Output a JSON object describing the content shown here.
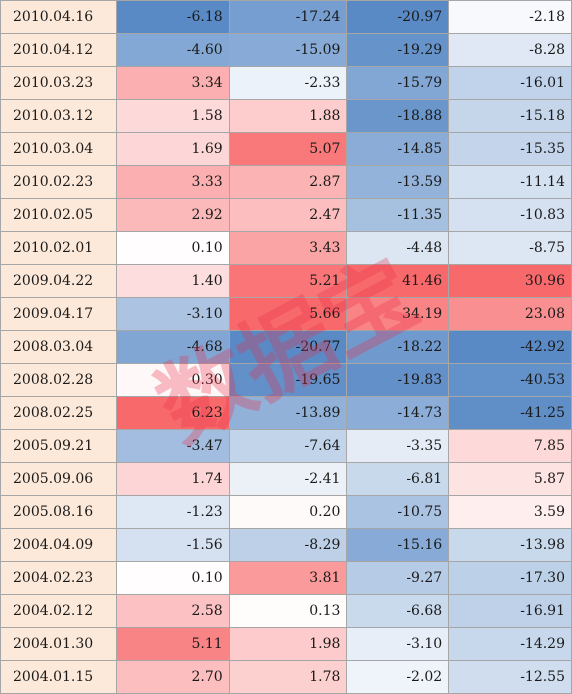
{
  "watermark": {
    "text": "数据宝",
    "color": "#e8304a"
  },
  "colors": {
    "date_bg": "#fde9d9",
    "positive": "#f8696b",
    "neutral": "#ffffff",
    "negative": "#5a8ac6",
    "grid": "#a6a6a6"
  },
  "rows": [
    [
      "2010.04.16",
      "-6.18",
      "-17.24",
      "-20.97",
      "-2.18"
    ],
    [
      "2010.04.12",
      "-4.60",
      "-15.09",
      "-19.29",
      "-8.28"
    ],
    [
      "2010.03.23",
      "3.34",
      "-2.33",
      "-15.79",
      "-16.01"
    ],
    [
      "2010.03.12",
      "1.58",
      "1.88",
      "-18.88",
      "-15.18"
    ],
    [
      "2010.03.04",
      "1.69",
      "5.07",
      "-14.85",
      "-15.35"
    ],
    [
      "2010.02.23",
      "3.33",
      "2.87",
      "-13.59",
      "-11.14"
    ],
    [
      "2010.02.05",
      "2.92",
      "2.47",
      "-11.35",
      "-10.83"
    ],
    [
      "2010.02.01",
      "0.10",
      "3.43",
      "-4.48",
      "-8.75"
    ],
    [
      "2009.04.22",
      "1.40",
      "5.21",
      "41.46",
      "30.96"
    ],
    [
      "2009.04.17",
      "-3.10",
      "5.66",
      "34.19",
      "23.08"
    ],
    [
      "2008.03.04",
      "-4.68",
      "-20.77",
      "-18.22",
      "-42.92"
    ],
    [
      "2008.02.28",
      "0.30",
      "-19.65",
      "-19.83",
      "-40.53"
    ],
    [
      "2008.02.25",
      "6.23",
      "-13.89",
      "-14.73",
      "-41.25"
    ],
    [
      "2005.09.21",
      "-3.47",
      "-7.64",
      "-3.35",
      "7.85"
    ],
    [
      "2005.09.06",
      "1.74",
      "-2.41",
      "-6.81",
      "5.87"
    ],
    [
      "2005.08.16",
      "-1.23",
      "0.20",
      "-10.75",
      "3.59"
    ],
    [
      "2004.04.09",
      "-1.56",
      "-8.29",
      "-15.16",
      "-13.98"
    ],
    [
      "2004.02.23",
      "0.10",
      "3.81",
      "-9.27",
      "-17.30"
    ],
    [
      "2004.02.12",
      "2.58",
      "0.13",
      "-6.68",
      "-16.91"
    ],
    [
      "2004.01.30",
      "5.11",
      "1.98",
      "-3.10",
      "-14.29"
    ],
    [
      "2004.01.15",
      "2.70",
      "1.78",
      "-2.02",
      "-12.55"
    ]
  ]
}
